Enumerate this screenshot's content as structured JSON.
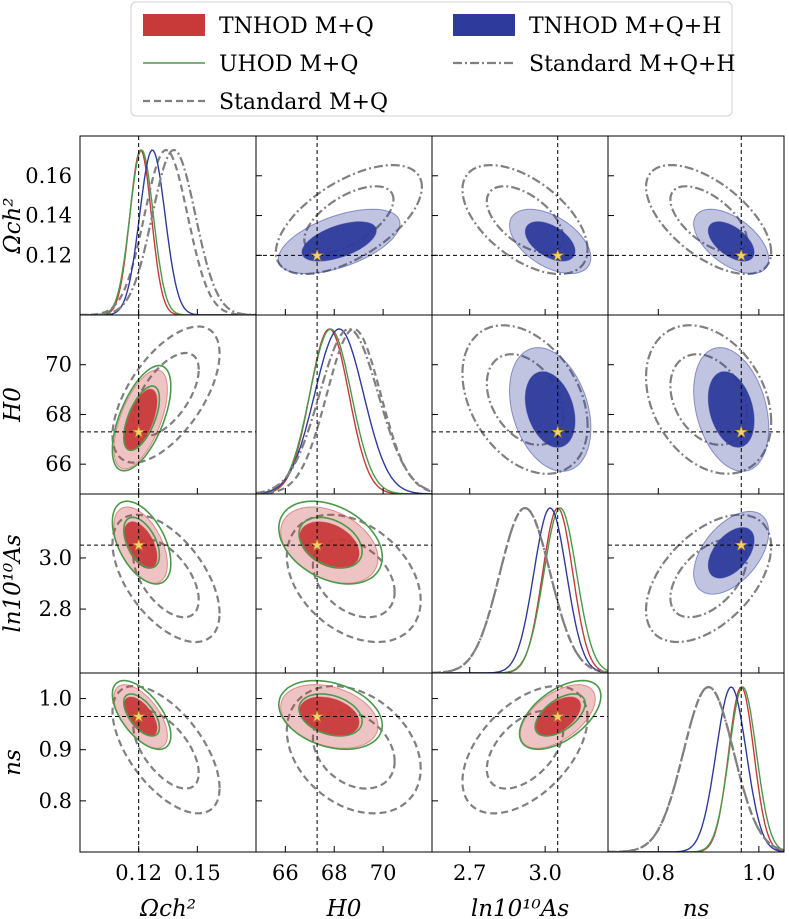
{
  "chart_data": {
    "type": "corner",
    "title": "",
    "parameters": [
      {
        "key": "omch2",
        "label": "Ωch²",
        "ticks": [
          0.12,
          0.15
        ],
        "tick_labels": [
          "0.12",
          "0.15"
        ],
        "y_ticks": [
          0.12,
          0.14,
          0.16
        ],
        "y_tick_labels": [
          "0.12",
          "0.14",
          "0.16"
        ],
        "range": [
          0.09,
          0.18
        ],
        "fiducial": 0.12
      },
      {
        "key": "H0",
        "label": "H0",
        "ticks": [
          66,
          68,
          70
        ],
        "tick_labels": [
          "66",
          "68",
          "70"
        ],
        "y_ticks": [
          66,
          68,
          70
        ],
        "y_tick_labels": [
          "66",
          "68",
          "70"
        ],
        "range": [
          64.8,
          72
        ],
        "fiducial": 67.3
      },
      {
        "key": "lnAs",
        "label": "ln10¹⁰As",
        "ticks": [
          2.7,
          3.0
        ],
        "tick_labels": [
          "2.7",
          "3.0"
        ],
        "y_ticks": [
          2.8,
          3.0
        ],
        "y_tick_labels": [
          "2.8",
          "3.0"
        ],
        "range": [
          2.55,
          3.25
        ],
        "fiducial": 3.05
      },
      {
        "key": "ns",
        "label": "ns",
        "ticks": [
          0.8,
          1.0
        ],
        "tick_labels": [
          "0.8",
          "1.0"
        ],
        "y_ticks": [
          0.8,
          0.9,
          1.0
        ],
        "y_tick_labels": [
          "0.8",
          "0.9",
          "1.0"
        ],
        "range": [
          0.7,
          1.05
        ],
        "fiducial": 0.965
      }
    ],
    "legend": {
      "position": "top-center",
      "entries": [
        {
          "label": "TNHOD M+Q",
          "style": "filled",
          "color": "#c8393a"
        },
        {
          "label": "TNHOD M+Q+H",
          "style": "filled",
          "color": "#2e3b9c"
        },
        {
          "label": "UHOD M+Q",
          "style": "solid",
          "color": "#4a9a4a"
        },
        {
          "label": "Standard M+Q+H",
          "style": "dashdot",
          "color": "#808080"
        },
        {
          "label": "Standard M+Q",
          "style": "dashed",
          "color": "#808080"
        }
      ]
    },
    "series": [
      {
        "name": "TNHOD M+Q",
        "color": "#c8393a",
        "style": "filled",
        "region": "lower",
        "mean": {
          "omch2": 0.121,
          "H0": 67.8,
          "lnAs": 3.05,
          "ns": 0.965
        },
        "sigma": {
          "omch2": 0.0055,
          "H0": 0.8,
          "lnAs": 0.06,
          "ns": 0.025
        },
        "corr": {
          "omch2|H0": 0.6,
          "omch2|lnAs": -0.5,
          "omch2|ns": -0.6,
          "H0|lnAs": -0.35,
          "H0|ns": -0.3,
          "lnAs|ns": 0.55
        }
      },
      {
        "name": "UHOD M+Q",
        "color": "#4a9a4a",
        "style": "solid",
        "region": "lower",
        "mean": {
          "omch2": 0.1215,
          "H0": 67.85,
          "lnAs": 3.06,
          "ns": 0.968
        },
        "sigma": {
          "omch2": 0.006,
          "H0": 0.85,
          "lnAs": 0.065,
          "ns": 0.027
        },
        "corr": {
          "omch2|H0": 0.6,
          "omch2|lnAs": -0.5,
          "omch2|ns": -0.6,
          "H0|lnAs": -0.35,
          "H0|ns": -0.3,
          "lnAs|ns": 0.55
        }
      },
      {
        "name": "Standard M+Q",
        "color": "#808080",
        "style": "dashed",
        "region": "lower",
        "mean": {
          "omch2": 0.134,
          "H0": 68.8,
          "lnAs": 2.92,
          "ns": 0.9
        },
        "sigma": {
          "omch2": 0.011,
          "H0": 1.1,
          "lnAs": 0.1,
          "ns": 0.05
        },
        "corr": {
          "omch2|H0": 0.6,
          "omch2|lnAs": -0.55,
          "omch2|ns": -0.6,
          "H0|lnAs": -0.35,
          "H0|ns": -0.3,
          "lnAs|ns": 0.5
        }
      },
      {
        "name": "TNHOD M+Q+H",
        "color": "#2e3b9c",
        "style": "filled",
        "region": "upper",
        "mean": {
          "omch2": 0.127,
          "H0": 68.2,
          "lnAs": 3.02,
          "ns": 0.945
        },
        "sigma": {
          "omch2": 0.0065,
          "H0": 1.0,
          "lnAs": 0.065,
          "ns": 0.03
        },
        "corr": {
          "omch2|H0": 0.55,
          "omch2|lnAs": -0.5,
          "omch2|ns": -0.55,
          "H0|lnAs": -0.3,
          "H0|ns": -0.3,
          "lnAs|ns": 0.5
        }
      },
      {
        "name": "Standard M+Q+H",
        "color": "#808080",
        "style": "dashdot",
        "region": "upper",
        "mean": {
          "omch2": 0.138,
          "H0": 68.6,
          "lnAs": 2.92,
          "ns": 0.9
        },
        "sigma": {
          "omch2": 0.011,
          "H0": 1.2,
          "lnAs": 0.1,
          "ns": 0.05
        },
        "corr": {
          "omch2|H0": 0.6,
          "omch2|lnAs": -0.55,
          "omch2|ns": -0.6,
          "H0|lnAs": -0.35,
          "H0|ns": -0.3,
          "lnAs|ns": 0.5
        }
      }
    ]
  }
}
